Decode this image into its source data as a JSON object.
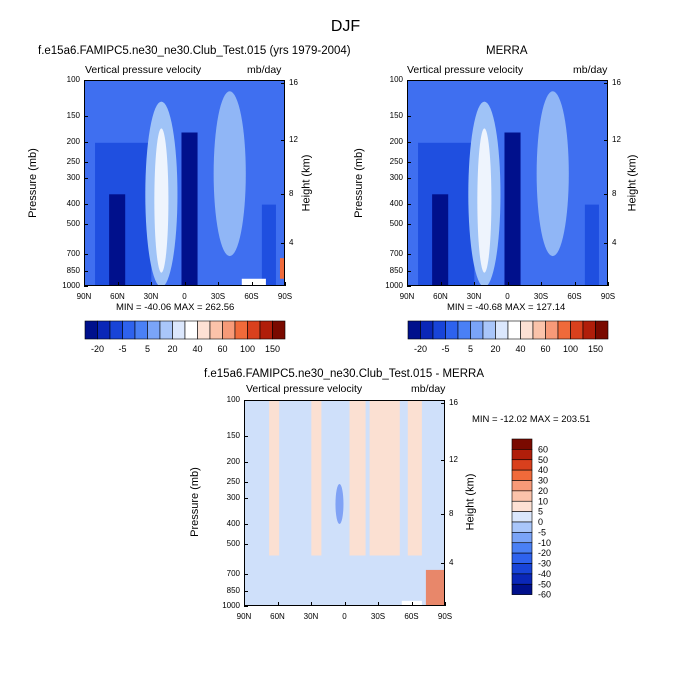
{
  "figure_title": "DJF",
  "colors": {
    "deep_blue": "#00108c",
    "blue": "#1f4fe0",
    "mid_blue": "#3f6ff0",
    "light_blue": "#9fc3f7",
    "pale_blue": "#cfe0fa",
    "neutral": "#fbe0d2",
    "orange": "#f06a3a",
    "dark_red": "#7a0a00"
  },
  "panels": [
    {
      "title": "f.e15a6.FAMIPC5.ne30_ne30.Club_Test.015 (yrs 1979-2004)",
      "left_label": "Vertical pressure velocity",
      "right_label": "mb/day",
      "y_label": "Pressure (mb)",
      "y2_label": "Height (km)",
      "min_max": "MIN = -40.06  MAX = 262.56"
    },
    {
      "title": "MERRA",
      "left_label": "Vertical pressure velocity",
      "right_label": "mb/day",
      "y_label": "Pressure (mb)",
      "y2_label": "Height (km)",
      "min_max": "MIN = -40.68  MAX = 127.14"
    },
    {
      "title": "f.e15a6.FAMIPC5.ne30_ne30.Club_Test.015 - MERRA",
      "left_label": "Vertical pressure velocity",
      "right_label": "mb/day",
      "y_label": "Pressure (mb)",
      "y2_label": "Height (km)",
      "min_max": "MIN = -12.02  MAX = 203.51"
    }
  ],
  "chart_data": [
    {
      "type": "heatmap",
      "title": "f.e15a6.FAMIPC5.ne30_ne30.Club_Test.015 (yrs 1979-2004)",
      "x_ticks": [
        "90N",
        "60N",
        "30N",
        "0",
        "30S",
        "60S",
        "90S"
      ],
      "y_ticks": [
        "100",
        "150",
        "200",
        "250",
        "300",
        "400",
        "500",
        "700",
        "850",
        "1000"
      ],
      "y2_ticks": [
        "16",
        "12",
        "8",
        "4"
      ],
      "xlim": [
        90,
        -90
      ],
      "ylim": [
        1000,
        100
      ],
      "units": "mb/day",
      "colorbar_labels": [
        "-20",
        "-5",
        "5",
        "20",
        "40",
        "60",
        "100",
        "150"
      ],
      "colorbar_levels": [
        -50,
        -40,
        -30,
        -20,
        -10,
        -5,
        0,
        5,
        10,
        20,
        30,
        40,
        50,
        60,
        80,
        100,
        125,
        150,
        200
      ],
      "min": -40.06,
      "max": 262.56
    },
    {
      "type": "heatmap",
      "title": "MERRA",
      "x_ticks": [
        "90N",
        "60N",
        "30N",
        "0",
        "30S",
        "60S",
        "90S"
      ],
      "y_ticks": [
        "100",
        "150",
        "200",
        "250",
        "300",
        "400",
        "500",
        "700",
        "850",
        "1000"
      ],
      "y2_ticks": [
        "16",
        "12",
        "8",
        "4"
      ],
      "xlim": [
        90,
        -90
      ],
      "ylim": [
        1000,
        100
      ],
      "units": "mb/day",
      "colorbar_labels": [
        "-20",
        "-5",
        "5",
        "20",
        "40",
        "60",
        "100",
        "150"
      ],
      "colorbar_levels": [
        -50,
        -40,
        -30,
        -20,
        -10,
        -5,
        0,
        5,
        10,
        20,
        30,
        40,
        50,
        60,
        80,
        100,
        125,
        150,
        200
      ],
      "min": -40.68,
      "max": 127.14
    },
    {
      "type": "heatmap",
      "title": "f.e15a6.FAMIPC5.ne30_ne30.Club_Test.015 - MERRA",
      "x_ticks": [
        "90N",
        "60N",
        "30N",
        "0",
        "30S",
        "60S",
        "90S"
      ],
      "y_ticks": [
        "100",
        "150",
        "200",
        "250",
        "300",
        "400",
        "500",
        "700",
        "850",
        "1000"
      ],
      "y2_ticks": [
        "16",
        "12",
        "8",
        "4"
      ],
      "xlim": [
        90,
        -90
      ],
      "ylim": [
        1000,
        100
      ],
      "units": "mb/day",
      "colorbar_labels": [
        "60",
        "50",
        "40",
        "30",
        "20",
        "10",
        "5",
        "0",
        "-5",
        "-10",
        "-20",
        "-30",
        "-40",
        "-50",
        "-60"
      ],
      "min": -12.02,
      "max": 203.51
    }
  ]
}
